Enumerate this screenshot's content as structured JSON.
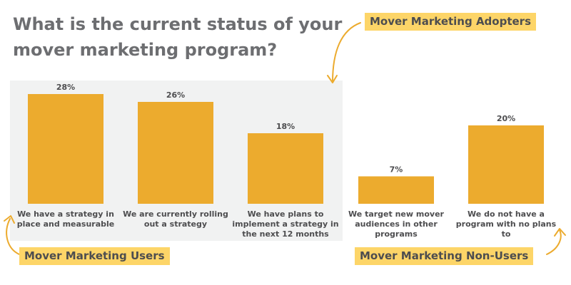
{
  "title_lines": [
    "What is the current status of your",
    "mover marketing program?"
  ],
  "group_labels": {
    "adopters": "Mover Marketing Adopters",
    "users": "Mover Marketing Users",
    "non_users": "Mover Marketing Non-Users"
  },
  "colors": {
    "bar": "#ecab2e",
    "panel": "#f1f2f2",
    "tag": "#fdd568",
    "arrow": "#ecab2e",
    "title": "#6d6e71",
    "text": "#4d4d4f"
  },
  "chart_data": {
    "type": "bar",
    "categories": [
      [
        "We have a strategy in",
        "place and measurable"
      ],
      [
        "We are currently rolling",
        "out a strategy"
      ],
      [
        "We have plans to",
        "implement a strategy in",
        "the next 12 months"
      ],
      [
        "We target new mover",
        "audiences in other",
        "programs"
      ],
      [
        "We do not have a",
        "program with no plans to"
      ]
    ],
    "values": [
      28,
      26,
      18,
      7,
      20
    ],
    "value_labels": [
      "28%",
      "26%",
      "18%",
      "7%",
      "20%"
    ],
    "title": "What is the current status of your mover marketing program?",
    "xlabel": "",
    "ylabel": "",
    "ylim": [
      0,
      28
    ],
    "grid": false,
    "legend": "none"
  }
}
